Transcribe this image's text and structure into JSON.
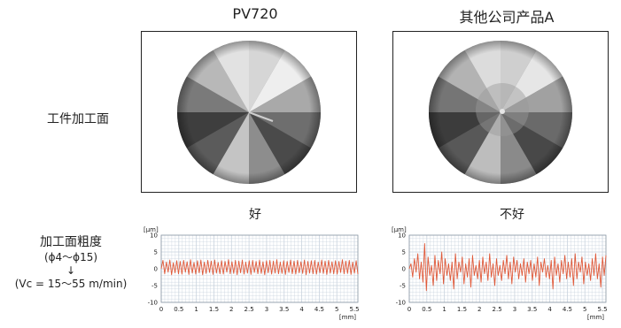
{
  "headers": {
    "left": "PV720",
    "right": "其他公司产品A"
  },
  "row_labels": {
    "surface": "工件加工面",
    "roughness": "加工面粗度",
    "diameter": "(ϕ4～ϕ15)",
    "arrow": "↓",
    "speed": "(Vc = 15～55 m/min)"
  },
  "ratings": {
    "left": "好",
    "right": "不好"
  },
  "colors": {
    "trace": "#e05a3a",
    "grid": "#c9d3de",
    "frame": "#222222"
  },
  "chart_data": [
    {
      "type": "line",
      "title": "好",
      "xlabel": "[mm]",
      "ylabel": "[μm]",
      "xlim": [
        0,
        5.6
      ],
      "ylim": [
        -10,
        10
      ],
      "xticks": [
        "0",
        "0.5",
        "1",
        "1.5",
        "2",
        "2.5",
        "3",
        "3.5",
        "4",
        "4.5",
        "5",
        "5.5"
      ],
      "yticks": [
        "10",
        "5",
        "0",
        "-5",
        "-10"
      ],
      "series": [
        {
          "values": [
            0,
            2.5,
            -1.5,
            2,
            -1,
            2.6,
            -1.8,
            1.8,
            -1.2,
            2.4,
            -1.5,
            2.2,
            -1.6,
            2.5,
            -1,
            2.1,
            -1.7,
            2.7,
            -1.3,
            1.9,
            -1.6,
            2.4,
            -1.2,
            2.6,
            -1.8,
            2,
            -1.4,
            2.5,
            -1.1,
            2.3,
            -1.7,
            2.6,
            -1.3,
            1.9,
            -1.5,
            2.4,
            -1.6,
            2.2,
            -1,
            2.7,
            -1.5,
            2.1,
            -1.4,
            2.5,
            -1.8,
            2.3,
            -1.2,
            2.6,
            -1.6,
            2,
            -1.3,
            2.4,
            -1.7,
            2.5,
            -1.1,
            2.2,
            -1.5,
            2.6,
            -1.4,
            2.1,
            -1.8,
            2.4,
            -1.2,
            2.5,
            -1.6,
            2.3,
            -1.3,
            2.7,
            -1.5,
            2,
            -1.4,
            2.4,
            -1.7,
            2.2,
            -1.1,
            2.6,
            -1.5,
            2.3,
            -1.6,
            2.5,
            -1.2,
            2.1,
            -1.4,
            2.6,
            -1.8,
            2.2,
            -1.3,
            2.4,
            -1.5,
            2.5,
            -1.6,
            2,
            -1.2,
            2.6,
            -1.4,
            2.3,
            -1.7,
            2.5,
            -1.3,
            2.1,
            -1.5,
            2.4,
            -1.6,
            2.2,
            -1.1,
            2.7,
            -1.5,
            2.3,
            -1.4,
            2.5,
            -1.7,
            2,
            -1.3,
            2.4,
            -1.6
          ]
        }
      ]
    },
    {
      "type": "line",
      "title": "不好",
      "xlabel": "[mm]",
      "ylabel": "[μm]",
      "xlim": [
        0,
        5.6
      ],
      "ylim": [
        -10,
        10
      ],
      "xticks": [
        "0",
        "0.5",
        "1",
        "1.5",
        "2",
        "2.5",
        "3",
        "3.5",
        "4",
        "4.5",
        "5",
        "5.5"
      ],
      "yticks": [
        "10",
        "5",
        "0",
        "-5",
        "-10"
      ],
      "series": [
        {
          "values": [
            0,
            1.5,
            -2.5,
            3,
            -1,
            4.5,
            -3,
            2,
            -4,
            7.5,
            -6.5,
            3.5,
            -2,
            1,
            -5,
            4,
            -3.5,
            2.5,
            -1.5,
            5,
            -4.5,
            3,
            -2,
            1.5,
            -3.5,
            2,
            -6,
            4.5,
            -3,
            2,
            -1,
            3.5,
            -4.5,
            1.5,
            -2.5,
            3,
            -5.5,
            4,
            -2,
            1,
            -3,
            2.5,
            -4,
            3.5,
            -1.5,
            2,
            -3.5,
            4.5,
            -2.5,
            1.5,
            -5,
            3,
            -2,
            1,
            -3.5,
            2.5,
            -1.5,
            4,
            -3,
            2,
            -4.5,
            3.5,
            -1,
            2.5,
            -3,
            1.5,
            -2,
            3,
            -4,
            2,
            -1.5,
            2.5,
            -3.5,
            1.5,
            -2.5,
            3.5,
            -5,
            2,
            -1,
            3,
            -2.5,
            1,
            -3,
            2.5,
            -6,
            3.5,
            -2,
            1.5,
            -4,
            2.5,
            -1.5,
            4,
            -3,
            2,
            -2.5,
            3,
            -5,
            4.5,
            -3,
            2,
            -1,
            3.5,
            -4.5,
            2,
            -2,
            1.5,
            -3.5,
            3,
            -2,
            4.5,
            -3,
            1.5,
            -5.5,
            3.5,
            -2,
            4
          ]
        }
      ]
    }
  ]
}
